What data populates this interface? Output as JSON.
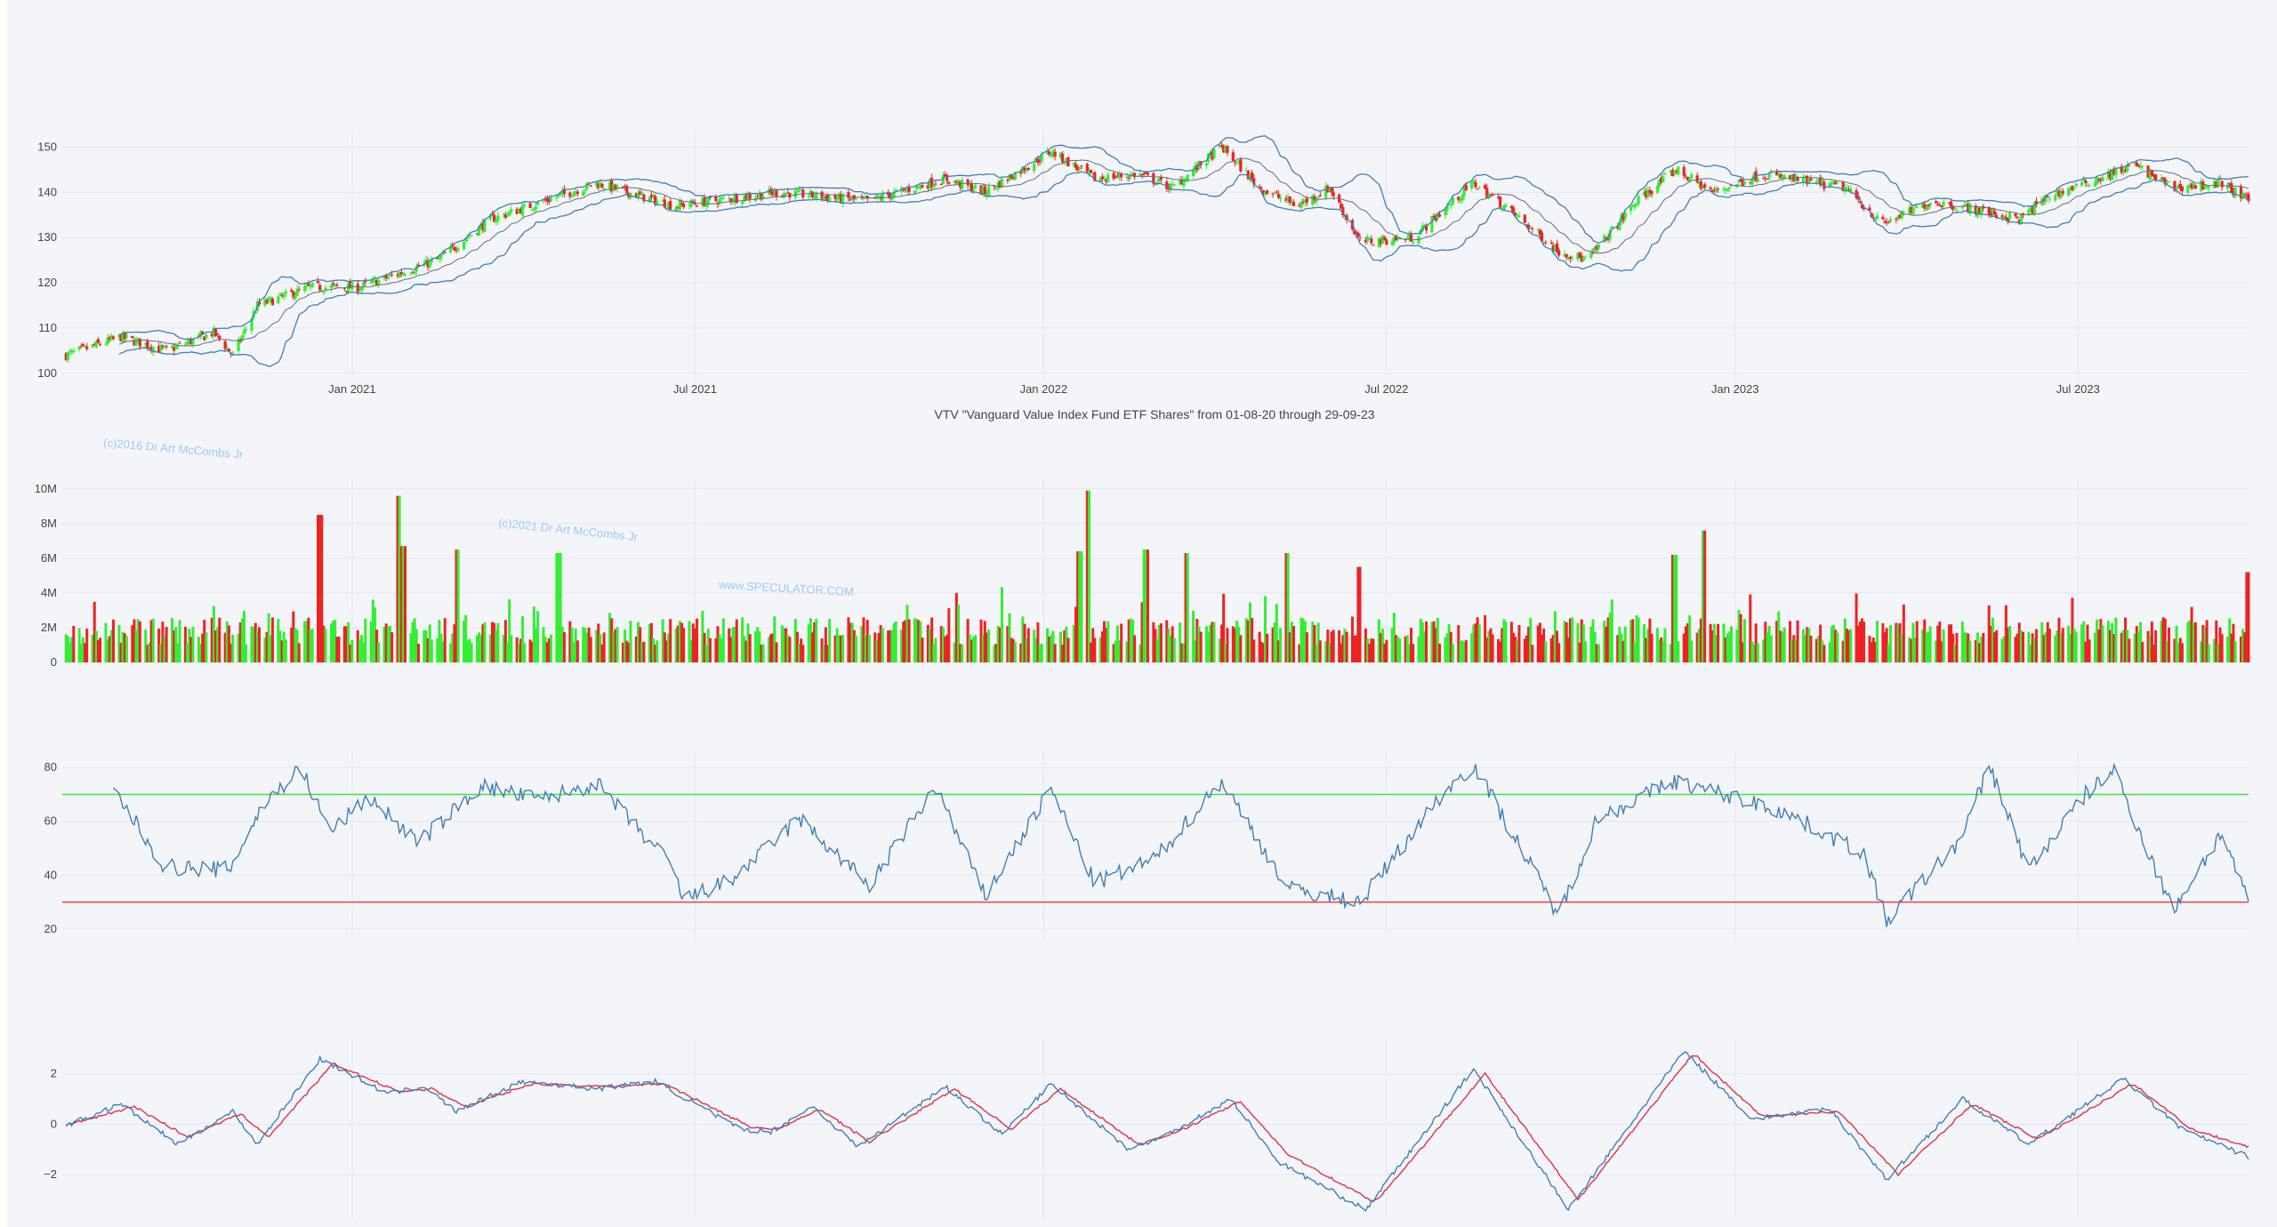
{
  "title": "VTV \"Vanguard Value Index Fund ETF Shares\" from 01-08-20 through 29-09-23",
  "watermarks": [
    "(c)2016 Dr Art McCombs Jr",
    "(c)2021 Dr Art McCombs Jr",
    "www.SPECULATOR.COM"
  ],
  "colors": {
    "up": "#33ee33",
    "down": "#ee2222",
    "line": "#3f7fb2",
    "signal": "#e0304a",
    "overbought": "#44dd44",
    "oversold": "#e84040",
    "grid": "#e3e6ee",
    "background": "#f4f5f9"
  },
  "chart_data": [
    {
      "type": "candlestick",
      "name": "price",
      "x_ticks": [
        "Jan 2021",
        "Jul 2021",
        "Jan 2022",
        "Jul 2022",
        "Jan 2023",
        "Jul 2023"
      ],
      "y_ticks": [
        "100",
        "110",
        "120",
        "130",
        "140",
        "150"
      ],
      "ylim": [
        98,
        154
      ],
      "xlim": [
        "2020-08-01",
        "2023-09-29"
      ],
      "overlays": [
        "bollinger upper",
        "bollinger middle",
        "bollinger lower"
      ],
      "close_anchors": [
        [
          "2020-08-03",
          104
        ],
        [
          "2020-09-01",
          108
        ],
        [
          "2020-09-25",
          105
        ],
        [
          "2020-10-20",
          109
        ],
        [
          "2020-10-30",
          104
        ],
        [
          "2020-11-12",
          115
        ],
        [
          "2020-12-10",
          119
        ],
        [
          "2021-01-05",
          119
        ],
        [
          "2021-02-15",
          125
        ],
        [
          "2021-03-15",
          134
        ],
        [
          "2021-05-10",
          142
        ],
        [
          "2021-06-20",
          137
        ],
        [
          "2021-08-15",
          140
        ],
        [
          "2021-09-30",
          138
        ],
        [
          "2021-11-10",
          143
        ],
        [
          "2021-12-01",
          140
        ],
        [
          "2022-01-05",
          149
        ],
        [
          "2022-01-28",
          143
        ],
        [
          "2022-02-20",
          144
        ],
        [
          "2022-03-10",
          141
        ],
        [
          "2022-04-05",
          150
        ],
        [
          "2022-04-25",
          141
        ],
        [
          "2022-05-15",
          137
        ],
        [
          "2022-06-01",
          141
        ],
        [
          "2022-06-17",
          129
        ],
        [
          "2022-07-15",
          130
        ],
        [
          "2022-08-16",
          142
        ],
        [
          "2022-09-01",
          137
        ],
        [
          "2022-09-30",
          127
        ],
        [
          "2022-10-15",
          125
        ],
        [
          "2022-11-10",
          138
        ],
        [
          "2022-12-01",
          145
        ],
        [
          "2022-12-20",
          140
        ],
        [
          "2023-01-15",
          144
        ],
        [
          "2023-02-28",
          141
        ],
        [
          "2023-03-20",
          133
        ],
        [
          "2023-04-15",
          138
        ],
        [
          "2023-05-10",
          136
        ],
        [
          "2023-05-31",
          134
        ],
        [
          "2023-06-15",
          139
        ],
        [
          "2023-07-31",
          146
        ],
        [
          "2023-08-20",
          141
        ],
        [
          "2023-09-15",
          142
        ],
        [
          "2023-09-29",
          138
        ]
      ]
    },
    {
      "type": "bar",
      "name": "volume",
      "y_ticks": [
        "0",
        "2M",
        "4M",
        "6M",
        "8M",
        "10M"
      ],
      "ylim": [
        0,
        10500000
      ],
      "spikes": [
        [
          "2020-12-15",
          8500000
        ],
        [
          "2021-01-25",
          9600000
        ],
        [
          "2021-01-28",
          6700000
        ],
        [
          "2021-02-26",
          6500000
        ],
        [
          "2021-04-20",
          6300000
        ],
        [
          "2022-01-24",
          9900000
        ],
        [
          "2022-01-20",
          6400000
        ],
        [
          "2022-02-24",
          6500000
        ],
        [
          "2022-03-18",
          6300000
        ],
        [
          "2022-05-09",
          6300000
        ],
        [
          "2022-06-17",
          5500000
        ],
        [
          "2022-12-16",
          7600000
        ],
        [
          "2022-11-30",
          6200000
        ],
        [
          "2023-09-29",
          5200000
        ]
      ]
    },
    {
      "type": "line",
      "name": "rsi",
      "y_ticks": [
        "20",
        "40",
        "60",
        "80"
      ],
      "ylim": [
        15,
        86
      ],
      "reference_lines": [
        70,
        30
      ],
      "anchors": [
        [
          "2020-08-28",
          72
        ],
        [
          "2020-09-24",
          43
        ],
        [
          "2020-10-28",
          42
        ],
        [
          "2020-11-15",
          66
        ],
        [
          "2020-12-05",
          80
        ],
        [
          "2020-12-20",
          56
        ],
        [
          "2021-01-10",
          69
        ],
        [
          "2021-02-05",
          52
        ],
        [
          "2021-03-10",
          73
        ],
        [
          "2021-04-10",
          68
        ],
        [
          "2021-05-10",
          74
        ],
        [
          "2021-06-18",
          44
        ],
        [
          "2021-06-25",
          31
        ],
        [
          "2021-07-20",
          38
        ],
        [
          "2021-08-25",
          61
        ],
        [
          "2021-10-01",
          36
        ],
        [
          "2021-11-05",
          73
        ],
        [
          "2021-12-01",
          32
        ],
        [
          "2022-01-05",
          72
        ],
        [
          "2022-01-28",
          37
        ],
        [
          "2022-03-01",
          46
        ],
        [
          "2022-04-05",
          75
        ],
        [
          "2022-05-10",
          35
        ],
        [
          "2022-06-17",
          30
        ],
        [
          "2022-07-29",
          69
        ],
        [
          "2022-08-16",
          81
        ],
        [
          "2022-09-30",
          25
        ],
        [
          "2022-10-20",
          61
        ],
        [
          "2022-11-30",
          75
        ],
        [
          "2023-01-25",
          64
        ],
        [
          "2023-03-10",
          48
        ],
        [
          "2023-03-22",
          23
        ],
        [
          "2023-05-01",
          54
        ],
        [
          "2023-05-15",
          81
        ],
        [
          "2023-06-05",
          42
        ],
        [
          "2023-07-05",
          70
        ],
        [
          "2023-07-20",
          79
        ],
        [
          "2023-08-20",
          27
        ],
        [
          "2023-09-15",
          56
        ],
        [
          "2023-09-29",
          29
        ]
      ]
    },
    {
      "type": "line",
      "name": "macd",
      "y_ticks": [
        "2",
        "0",
        "−2"
      ],
      "ylim": [
        -3.8,
        3.4
      ],
      "series": [
        {
          "role": "macd",
          "anchors": [
            [
              "2020-08-05",
              0
            ],
            [
              "2020-09-01",
              0.8
            ],
            [
              "2020-10-01",
              -0.8
            ],
            [
              "2020-10-30",
              0.5
            ],
            [
              "2020-11-12",
              -0.8
            ],
            [
              "2020-12-15",
              2.6
            ],
            [
              "2021-01-20",
              1.2
            ],
            [
              "2021-02-08",
              1.5
            ],
            [
              "2021-02-25",
              0.5
            ],
            [
              "2021-04-01",
              1.7
            ],
            [
              "2021-05-10",
              1.4
            ],
            [
              "2021-06-10",
              1.7
            ],
            [
              "2021-07-25",
              -0.2
            ],
            [
              "2021-08-10",
              -0.3
            ],
            [
              "2021-09-01",
              0.7
            ],
            [
              "2021-09-25",
              -0.9
            ],
            [
              "2021-11-10",
              1.5
            ],
            [
              "2021-12-10",
              -0.4
            ],
            [
              "2022-01-05",
              1.6
            ],
            [
              "2022-02-15",
              -1.0
            ],
            [
              "2022-03-05",
              -0.5
            ],
            [
              "2022-04-10",
              1.0
            ],
            [
              "2022-05-05",
              -1.5
            ],
            [
              "2022-06-20",
              -3.4
            ],
            [
              "2022-08-16",
              2.2
            ],
            [
              "2022-10-05",
              -3.4
            ],
            [
              "2022-12-05",
              2.9
            ],
            [
              "2023-01-10",
              0.2
            ],
            [
              "2023-02-20",
              0.6
            ],
            [
              "2023-03-22",
              -2.2
            ],
            [
              "2023-05-01",
              1.0
            ],
            [
              "2023-06-05",
              -0.8
            ],
            [
              "2023-07-25",
              1.8
            ],
            [
              "2023-08-25",
              -0.2
            ],
            [
              "2023-09-29",
              -1.3
            ]
          ]
        },
        {
          "role": "signal",
          "anchors": [
            [
              "2020-08-05",
              0
            ],
            [
              "2020-09-08",
              0.7
            ],
            [
              "2020-10-06",
              -0.5
            ],
            [
              "2020-11-03",
              0.4
            ],
            [
              "2020-11-18",
              -0.5
            ],
            [
              "2020-12-22",
              2.4
            ],
            [
              "2021-01-25",
              1.3
            ],
            [
              "2021-02-12",
              1.4
            ],
            [
              "2021-03-02",
              0.7
            ],
            [
              "2021-04-06",
              1.6
            ],
            [
              "2021-05-15",
              1.5
            ],
            [
              "2021-06-15",
              1.6
            ],
            [
              "2021-07-30",
              -0.1
            ],
            [
              "2021-08-14",
              -0.2
            ],
            [
              "2021-09-05",
              0.6
            ],
            [
              "2021-10-01",
              -0.7
            ],
            [
              "2021-11-15",
              1.4
            ],
            [
              "2021-12-15",
              -0.2
            ],
            [
              "2022-01-10",
              1.4
            ],
            [
              "2022-02-20",
              -0.8
            ],
            [
              "2022-03-10",
              -0.4
            ],
            [
              "2022-04-15",
              0.9
            ],
            [
              "2022-05-10",
              -1.2
            ],
            [
              "2022-06-25",
              -3.1
            ],
            [
              "2022-08-22",
              2.0
            ],
            [
              "2022-10-10",
              -3.0
            ],
            [
              "2022-12-10",
              2.8
            ],
            [
              "2023-01-15",
              0.3
            ],
            [
              "2023-02-25",
              0.5
            ],
            [
              "2023-03-28",
              -2.0
            ],
            [
              "2023-05-06",
              0.8
            ],
            [
              "2023-06-10",
              -0.6
            ],
            [
              "2023-07-30",
              1.6
            ],
            [
              "2023-08-30",
              -0.2
            ],
            [
              "2023-09-29",
              -0.9
            ]
          ]
        }
      ]
    }
  ]
}
